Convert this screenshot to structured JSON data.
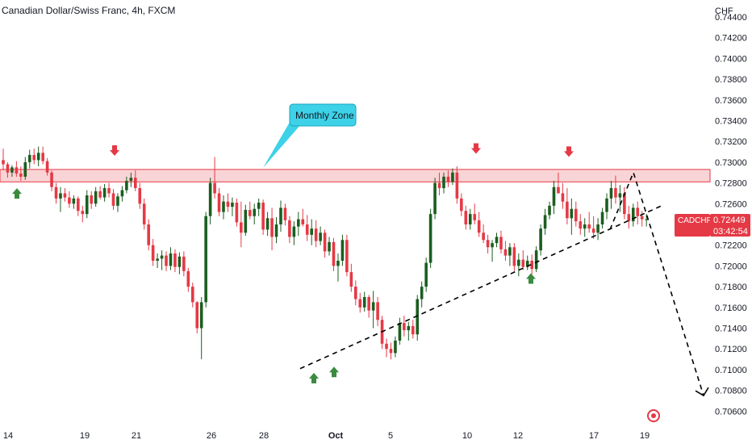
{
  "header": {
    "title": "Canadian Dollar/Swiss Franc, 4h, FXCM"
  },
  "price_axis": {
    "currency": "CHF",
    "tick_labels": [
      "0.74400",
      "0.74200",
      "0.74000",
      "0.73800",
      "0.73600",
      "0.73400",
      "0.73200",
      "0.73000",
      "0.72800",
      "0.72600",
      "0.72400",
      "0.72200",
      "0.72000",
      "0.71800",
      "0.71600",
      "0.71400",
      "0.71200",
      "0.71000",
      "0.70800",
      "0.70600"
    ]
  },
  "time_axis": {
    "labels": [
      "14",
      "19",
      "21",
      "26",
      "28",
      "Oct",
      "5",
      "10",
      "12",
      "17",
      "19"
    ]
  },
  "annotation": {
    "text": "Monthly Zone"
  },
  "price_tag": {
    "symbol": "CADCHF",
    "price": "0.72449",
    "countdown": "03:42:54"
  },
  "colors": {
    "up": "#1b5e20",
    "down": "#e53945",
    "zone_fill": "#f8c9cc",
    "zone_border": "#e53945",
    "callout": "#3dd2e8",
    "arrow_up": "#3a8a3f",
    "arrow_down": "#e53945"
  },
  "chart_data": {
    "type": "candlestick",
    "symbol": "CADCHF",
    "timeframe": "4h",
    "ylim": [
      0.7055,
      0.745
    ],
    "zone": {
      "low": 0.7281,
      "high": 0.7293,
      "label": "Monthly Zone"
    },
    "last_price": 0.72449,
    "candles": [
      [
        0.7302,
        0.7313,
        0.7292,
        0.7298
      ],
      [
        0.7298,
        0.73,
        0.7285,
        0.729
      ],
      [
        0.729,
        0.7297,
        0.7286,
        0.7295
      ],
      [
        0.7295,
        0.7301,
        0.7286,
        0.7289
      ],
      [
        0.7289,
        0.7296,
        0.7282,
        0.7286
      ],
      [
        0.7286,
        0.7305,
        0.7283,
        0.73
      ],
      [
        0.73,
        0.7312,
        0.7294,
        0.7307
      ],
      [
        0.7307,
        0.7313,
        0.7298,
        0.7302
      ],
      [
        0.7302,
        0.7315,
        0.7296,
        0.7309
      ],
      [
        0.7309,
        0.7315,
        0.7298,
        0.7301
      ],
      [
        0.7301,
        0.7304,
        0.7287,
        0.729
      ],
      [
        0.729,
        0.7292,
        0.7272,
        0.7276
      ],
      [
        0.7276,
        0.728,
        0.726,
        0.7265
      ],
      [
        0.7265,
        0.7276,
        0.7252,
        0.727
      ],
      [
        0.727,
        0.7275,
        0.7262,
        0.7266
      ],
      [
        0.7266,
        0.7272,
        0.7256,
        0.726
      ],
      [
        0.726,
        0.7268,
        0.7255,
        0.7265
      ],
      [
        0.7265,
        0.7267,
        0.7248,
        0.7253
      ],
      [
        0.7253,
        0.7258,
        0.7242,
        0.725
      ],
      [
        0.725,
        0.7273,
        0.7246,
        0.7268
      ],
      [
        0.7268,
        0.7272,
        0.7255,
        0.726
      ],
      [
        0.726,
        0.7276,
        0.7257,
        0.7272
      ],
      [
        0.7272,
        0.7277,
        0.7264,
        0.7266
      ],
      [
        0.7266,
        0.7279,
        0.7262,
        0.7275
      ],
      [
        0.7275,
        0.728,
        0.7266,
        0.727
      ],
      [
        0.727,
        0.7274,
        0.7254,
        0.7258
      ],
      [
        0.7258,
        0.727,
        0.7252,
        0.7267
      ],
      [
        0.7267,
        0.7277,
        0.7262,
        0.7273
      ],
      [
        0.7273,
        0.7286,
        0.727,
        0.7282
      ],
      [
        0.7282,
        0.729,
        0.7276,
        0.7285
      ],
      [
        0.7285,
        0.7292,
        0.7272,
        0.7275
      ],
      [
        0.7275,
        0.728,
        0.7255,
        0.726
      ],
      [
        0.726,
        0.7265,
        0.7235,
        0.724
      ],
      [
        0.724,
        0.7245,
        0.7215,
        0.722
      ],
      [
        0.722,
        0.7226,
        0.72,
        0.7205
      ],
      [
        0.7205,
        0.7212,
        0.7198,
        0.7207
      ],
      [
        0.7207,
        0.7215,
        0.7196,
        0.721
      ],
      [
        0.721,
        0.7214,
        0.7195,
        0.72
      ],
      [
        0.72,
        0.7218,
        0.7196,
        0.7212
      ],
      [
        0.7212,
        0.7216,
        0.7194,
        0.7199
      ],
      [
        0.7199,
        0.7213,
        0.7192,
        0.7209
      ],
      [
        0.7209,
        0.7214,
        0.719,
        0.7195
      ],
      [
        0.7195,
        0.7198,
        0.7175,
        0.718
      ],
      [
        0.718,
        0.7184,
        0.716,
        0.7165
      ],
      [
        0.7165,
        0.7166,
        0.7135,
        0.714
      ],
      [
        0.714,
        0.717,
        0.711,
        0.7165
      ],
      [
        0.7165,
        0.7252,
        0.716,
        0.7248
      ],
      [
        0.7248,
        0.7285,
        0.724,
        0.728
      ],
      [
        0.728,
        0.7305,
        0.7265,
        0.727
      ],
      [
        0.727,
        0.7275,
        0.7248,
        0.7252
      ],
      [
        0.7252,
        0.7268,
        0.7245,
        0.7262
      ],
      [
        0.7262,
        0.727,
        0.7252,
        0.7257
      ],
      [
        0.7257,
        0.7266,
        0.7248,
        0.7261
      ],
      [
        0.7261,
        0.7265,
        0.7238,
        0.7242
      ],
      [
        0.7242,
        0.7262,
        0.7218,
        0.7232
      ],
      [
        0.7232,
        0.7259,
        0.7229,
        0.7254
      ],
      [
        0.7254,
        0.7262,
        0.7245,
        0.7248
      ],
      [
        0.7248,
        0.726,
        0.724,
        0.7255
      ],
      [
        0.7255,
        0.7265,
        0.7248,
        0.7261
      ],
      [
        0.7261,
        0.7264,
        0.723,
        0.7235
      ],
      [
        0.7235,
        0.7252,
        0.7229,
        0.7246
      ],
      [
        0.7246,
        0.7256,
        0.7215,
        0.7228
      ],
      [
        0.7228,
        0.7247,
        0.7222,
        0.724
      ],
      [
        0.724,
        0.7263,
        0.7233,
        0.7256
      ],
      [
        0.7256,
        0.726,
        0.7239,
        0.7244
      ],
      [
        0.7244,
        0.7248,
        0.7222,
        0.7228
      ],
      [
        0.7228,
        0.7243,
        0.722,
        0.7238
      ],
      [
        0.7238,
        0.7252,
        0.7229,
        0.7245
      ],
      [
        0.7245,
        0.7255,
        0.7238,
        0.724
      ],
      [
        0.724,
        0.7249,
        0.7224,
        0.723
      ],
      [
        0.723,
        0.7245,
        0.722,
        0.7236
      ],
      [
        0.7236,
        0.7244,
        0.7218,
        0.7224
      ],
      [
        0.7224,
        0.7238,
        0.722,
        0.7232
      ],
      [
        0.7232,
        0.7235,
        0.7208,
        0.7214
      ],
      [
        0.7214,
        0.7228,
        0.721,
        0.7223
      ],
      [
        0.7223,
        0.7227,
        0.7195,
        0.72
      ],
      [
        0.72,
        0.7212,
        0.7185,
        0.7205
      ],
      [
        0.7205,
        0.723,
        0.72,
        0.7225
      ],
      [
        0.7225,
        0.723,
        0.719,
        0.7194
      ],
      [
        0.7194,
        0.7202,
        0.7175,
        0.718
      ],
      [
        0.718,
        0.7186,
        0.7162,
        0.7168
      ],
      [
        0.7168,
        0.7174,
        0.7155,
        0.716
      ],
      [
        0.716,
        0.7175,
        0.7156,
        0.717
      ],
      [
        0.717,
        0.7172,
        0.715,
        0.7157
      ],
      [
        0.7157,
        0.7176,
        0.714,
        0.7165
      ],
      [
        0.7165,
        0.717,
        0.7142,
        0.7148
      ],
      [
        0.7148,
        0.7152,
        0.712,
        0.7125
      ],
      [
        0.7125,
        0.713,
        0.7112,
        0.712
      ],
      [
        0.712,
        0.7126,
        0.711,
        0.7116
      ],
      [
        0.7116,
        0.7132,
        0.7112,
        0.7128
      ],
      [
        0.7128,
        0.715,
        0.7124,
        0.7145
      ],
      [
        0.7145,
        0.7152,
        0.7132,
        0.7138
      ],
      [
        0.7138,
        0.7146,
        0.7128,
        0.7142
      ],
      [
        0.7142,
        0.7148,
        0.713,
        0.7134
      ],
      [
        0.7134,
        0.7172,
        0.7128,
        0.7168
      ],
      [
        0.7168,
        0.7185,
        0.716,
        0.718
      ],
      [
        0.718,
        0.7208,
        0.7175,
        0.7203
      ],
      [
        0.7203,
        0.7255,
        0.7198,
        0.725
      ],
      [
        0.725,
        0.7285,
        0.7245,
        0.728
      ],
      [
        0.728,
        0.729,
        0.7268,
        0.7275
      ],
      [
        0.7275,
        0.729,
        0.727,
        0.7286
      ],
      [
        0.7286,
        0.7292,
        0.7276,
        0.7281
      ],
      [
        0.7281,
        0.7294,
        0.7278,
        0.729
      ],
      [
        0.729,
        0.7296,
        0.726,
        0.7265
      ],
      [
        0.7265,
        0.727,
        0.7248,
        0.7253
      ],
      [
        0.7253,
        0.7258,
        0.7235,
        0.724
      ],
      [
        0.724,
        0.7255,
        0.7235,
        0.725
      ],
      [
        0.725,
        0.726,
        0.724,
        0.7244
      ],
      [
        0.7244,
        0.7252,
        0.7228,
        0.7232
      ],
      [
        0.7232,
        0.724,
        0.7222,
        0.7225
      ],
      [
        0.7225,
        0.723,
        0.7212,
        0.7218
      ],
      [
        0.7218,
        0.7225,
        0.7204,
        0.7222
      ],
      [
        0.7222,
        0.7232,
        0.7218,
        0.7228
      ],
      [
        0.7228,
        0.7234,
        0.7212,
        0.7216
      ],
      [
        0.7216,
        0.7224,
        0.7205,
        0.721
      ],
      [
        0.721,
        0.7222,
        0.72,
        0.7218
      ],
      [
        0.7218,
        0.7222,
        0.7195,
        0.72
      ],
      [
        0.72,
        0.7212,
        0.719,
        0.7206
      ],
      [
        0.7206,
        0.7215,
        0.7196,
        0.7199
      ],
      [
        0.7199,
        0.721,
        0.7196,
        0.7205
      ],
      [
        0.7205,
        0.7211,
        0.7192,
        0.7197
      ],
      [
        0.7197,
        0.7219,
        0.7194,
        0.7215
      ],
      [
        0.7215,
        0.724,
        0.721,
        0.7236
      ],
      [
        0.7236,
        0.7255,
        0.723,
        0.7249
      ],
      [
        0.7249,
        0.7262,
        0.7245,
        0.7258
      ],
      [
        0.7258,
        0.7282,
        0.725,
        0.7276
      ],
      [
        0.7276,
        0.729,
        0.727,
        0.727
      ],
      [
        0.727,
        0.728,
        0.7255,
        0.7262
      ],
      [
        0.7262,
        0.7275,
        0.724,
        0.7246
      ],
      [
        0.7246,
        0.7265,
        0.723,
        0.7255
      ],
      [
        0.7255,
        0.7262,
        0.7238,
        0.7243
      ],
      [
        0.7243,
        0.725,
        0.723,
        0.7236
      ],
      [
        0.7236,
        0.7246,
        0.7228,
        0.724
      ],
      [
        0.724,
        0.7252,
        0.7232,
        0.7236
      ],
      [
        0.7236,
        0.7248,
        0.7226,
        0.7232
      ],
      [
        0.7232,
        0.7246,
        0.7225,
        0.724
      ],
      [
        0.724,
        0.7256,
        0.7236,
        0.7252
      ],
      [
        0.7252,
        0.727,
        0.7245,
        0.7265
      ],
      [
        0.7265,
        0.7282,
        0.7255,
        0.7275
      ],
      [
        0.7275,
        0.7287,
        0.726,
        0.7266
      ],
      [
        0.7266,
        0.7278,
        0.7252,
        0.727
      ],
      [
        0.727,
        0.7276,
        0.7245,
        0.725
      ],
      [
        0.725,
        0.7258,
        0.7236,
        0.7243
      ],
      [
        0.7243,
        0.726,
        0.7238,
        0.7256
      ],
      [
        0.7256,
        0.7262,
        0.724,
        0.7248
      ],
      [
        0.7248,
        0.7253,
        0.7238,
        0.7245
      ],
      [
        0.7245,
        0.725,
        0.7238,
        0.7245
      ]
    ],
    "support_line": {
      "from_date": "Sep 29",
      "from_price": 0.7101,
      "to_date": "after Oct 17",
      "to_price": 0.7258
    },
    "projection_path": [
      0.7235,
      0.729,
      0.7075
    ],
    "markers": {
      "up": [
        0.7278,
        0.71,
        0.7106,
        0.7196
      ],
      "down": [
        0.7303,
        0.7305,
        0.7302
      ]
    }
  }
}
